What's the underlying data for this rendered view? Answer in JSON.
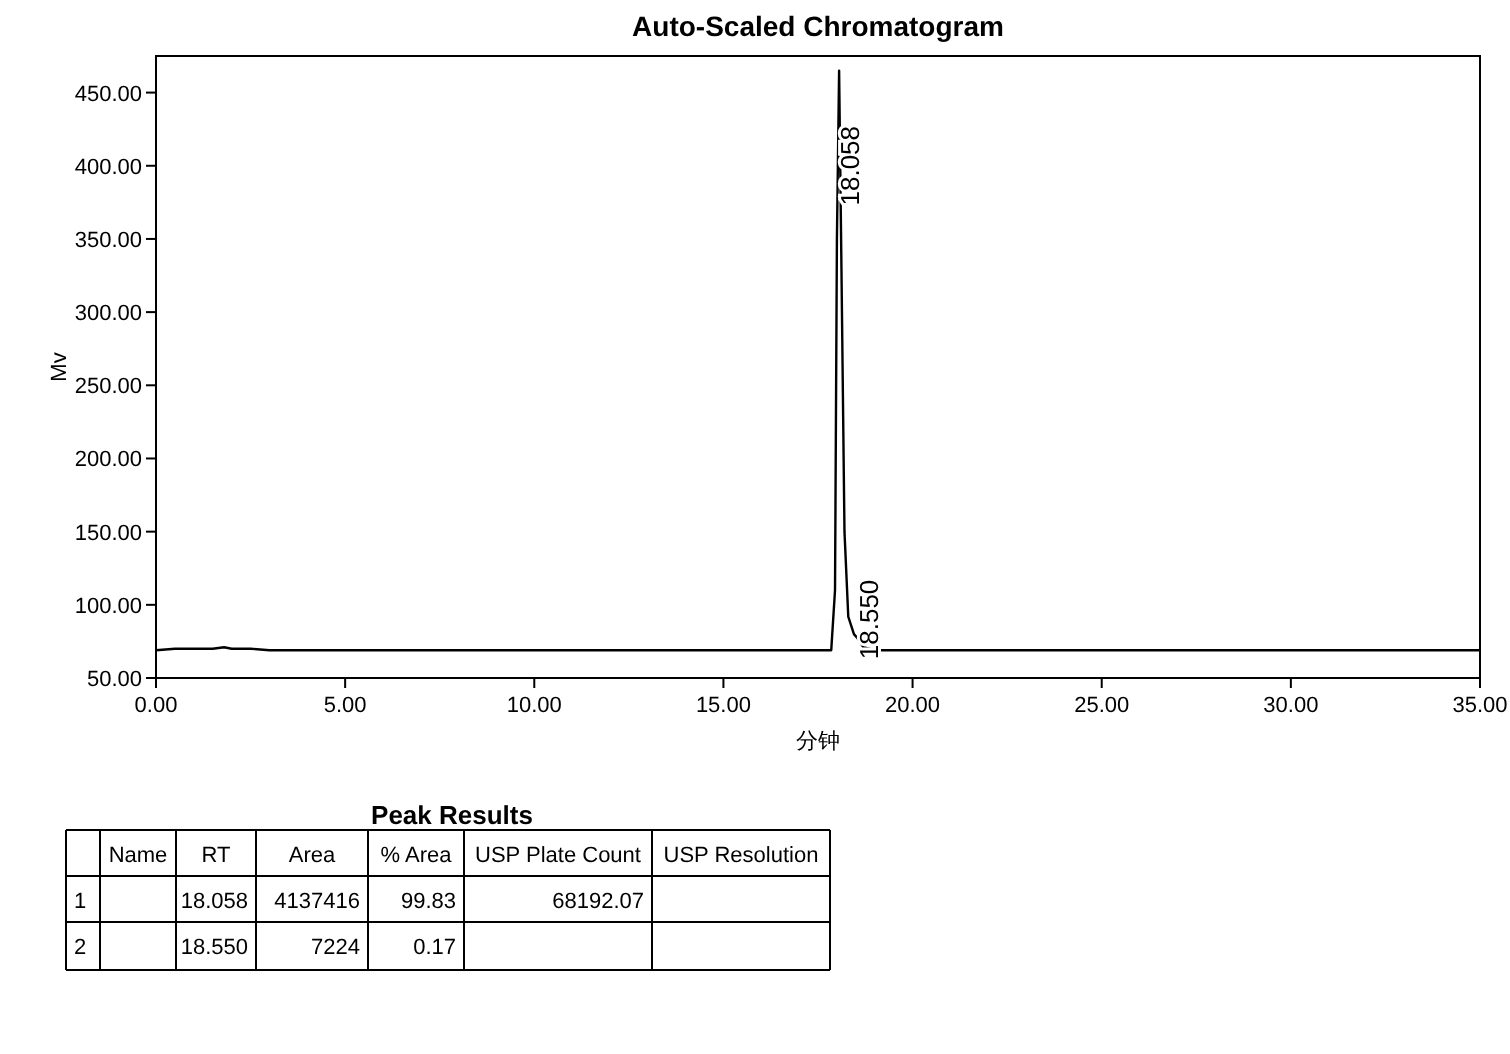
{
  "chart_data": [
    {
      "type": "line",
      "title": "Auto-Scaled Chromatogram",
      "xlabel": "分钟",
      "ylabel": "Mv",
      "xlim": [
        0,
        35
      ],
      "ylim": [
        50,
        475
      ],
      "xticks": [
        {
          "value": 0,
          "label": "0.00"
        },
        {
          "value": 5,
          "label": "5.00"
        },
        {
          "value": 10,
          "label": "10.00"
        },
        {
          "value": 15,
          "label": "15.00"
        },
        {
          "value": 20,
          "label": "20.00"
        },
        {
          "value": 25,
          "label": "25.00"
        },
        {
          "value": 30,
          "label": "30.00"
        },
        {
          "value": 35,
          "label": "35.00"
        }
      ],
      "yticks": [
        {
          "value": 50,
          "label": "50.00"
        },
        {
          "value": 100,
          "label": "100.00"
        },
        {
          "value": 150,
          "label": "150.00"
        },
        {
          "value": 200,
          "label": "200.00"
        },
        {
          "value": 250,
          "label": "250.00"
        },
        {
          "value": 300,
          "label": "300.00"
        },
        {
          "value": 350,
          "label": "350.00"
        },
        {
          "value": 400,
          "label": "400.00"
        },
        {
          "value": 450,
          "label": "450.00"
        }
      ],
      "grid": false,
      "series": [
        {
          "color": "#000000",
          "x": [
            0,
            0.5,
            1,
            1.5,
            1.8,
            2,
            2.5,
            3,
            5,
            7.5,
            10,
            12.5,
            15,
            17.5,
            17.85,
            17.95,
            18.0,
            18.058,
            18.12,
            18.2,
            18.3,
            18.45,
            18.55,
            18.7,
            19,
            20,
            25,
            30,
            35
          ],
          "values": [
            69,
            70,
            70,
            70,
            71,
            70,
            70,
            69,
            69,
            69,
            69,
            69,
            69,
            69,
            69,
            110,
            350,
            465,
            330,
            150,
            92,
            80,
            77,
            71,
            69,
            69,
            69,
            69,
            69
          ]
        }
      ],
      "annotations": [
        {
          "text": "18.058",
          "x": 18.058,
          "y": 400
        },
        {
          "text": "18.550",
          "x": 18.55,
          "y": 90
        }
      ]
    },
    {
      "type": "other",
      "title": "Peak Results",
      "categories": [
        null,
        "Name",
        "RT",
        "Area",
        "% Area",
        "USP Plate Count",
        "USP Resolution"
      ],
      "y_categories": [
        "1",
        "2"
      ],
      "annotations": [
        null,
        "18.058",
        "4137416",
        "99.83",
        "68192.07",
        null,
        null,
        "18.550",
        "7224",
        "0.17",
        null,
        null
      ]
    }
  ]
}
